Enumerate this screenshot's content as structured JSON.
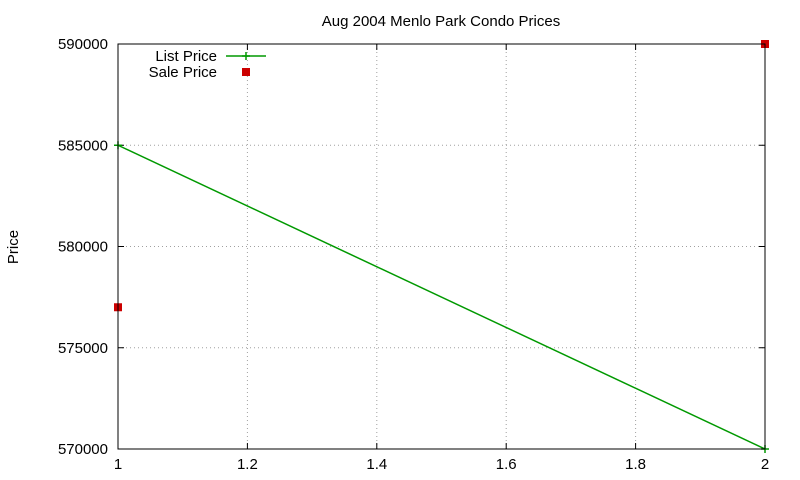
{
  "chart_data": {
    "type": "line",
    "title": "Aug 2004 Menlo Park Condo Prices",
    "xlabel": "",
    "ylabel": "Price",
    "xlim": [
      1,
      2
    ],
    "ylim": [
      570000,
      590000
    ],
    "xticks": [
      1,
      1.2,
      1.4,
      1.6,
      1.8,
      2
    ],
    "xtick_labels": [
      "1",
      "1.2",
      "1.4",
      "1.6",
      "1.8",
      "2"
    ],
    "yticks": [
      570000,
      575000,
      580000,
      585000,
      590000
    ],
    "ytick_labels": [
      "570000",
      "575000",
      "580000",
      "585000",
      "590000"
    ],
    "grid": true,
    "legend_position": "top-left",
    "series": [
      {
        "name": "List Price",
        "style": "line-with-plus-markers",
        "color": "#009900",
        "x": [
          1,
          2
        ],
        "y": [
          585000,
          570000
        ]
      },
      {
        "name": "Sale Price",
        "style": "square-markers",
        "color": "#cc0000",
        "x": [
          1,
          2
        ],
        "y": [
          577000,
          590000
        ]
      }
    ]
  }
}
